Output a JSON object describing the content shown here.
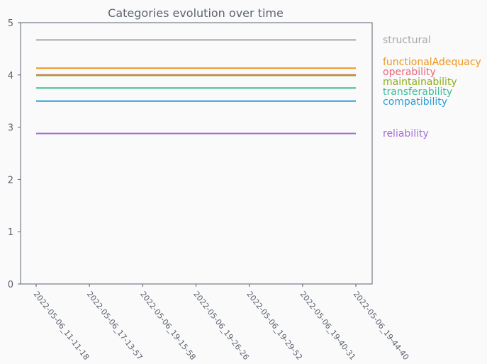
{
  "chart_data": {
    "type": "line",
    "title": "Categories evolution over time",
    "xlabel": "",
    "ylabel": "",
    "ylim": [
      0,
      5
    ],
    "yticks": [
      0,
      1,
      2,
      3,
      4,
      5
    ],
    "x": [
      "2022-05-06_11-11-18",
      "2022-05-06_17-13-57",
      "2022-05-06_19-15-58",
      "2022-05-06_19-26-26",
      "2022-05-06_19-29-52",
      "2022-05-06_19-40-31",
      "2022-05-06_19-44-40"
    ],
    "grid": false,
    "legend": "right",
    "series": [
      {
        "name": "structural",
        "color": "#a6a6ad",
        "values": [
          4.67,
          4.67,
          4.67,
          4.67,
          4.67,
          4.67,
          4.67
        ]
      },
      {
        "name": "functionalAdequacy",
        "color": "#f0961c",
        "values": [
          4.13,
          4.13,
          4.13,
          4.13,
          4.13,
          4.13,
          4.13
        ]
      },
      {
        "name": "operability",
        "color": "#e8677d",
        "values": [
          4.0,
          4.0,
          4.0,
          4.0,
          4.0,
          4.0,
          4.0
        ]
      },
      {
        "name": "maintainability",
        "color": "#8cae1c",
        "values": [
          3.99,
          3.99,
          3.99,
          3.99,
          3.99,
          3.99,
          3.99
        ]
      },
      {
        "name": "transferability",
        "color": "#3dbd9a",
        "values": [
          3.75,
          3.75,
          3.75,
          3.75,
          3.75,
          3.75,
          3.75
        ]
      },
      {
        "name": "compatibility",
        "color": "#2b9ed8",
        "values": [
          3.5,
          3.5,
          3.5,
          3.5,
          3.5,
          3.5,
          3.5
        ]
      },
      {
        "name": "reliability",
        "color": "#a46fd8",
        "values": [
          2.88,
          2.88,
          2.88,
          2.88,
          2.88,
          2.88,
          2.88
        ]
      }
    ]
  }
}
